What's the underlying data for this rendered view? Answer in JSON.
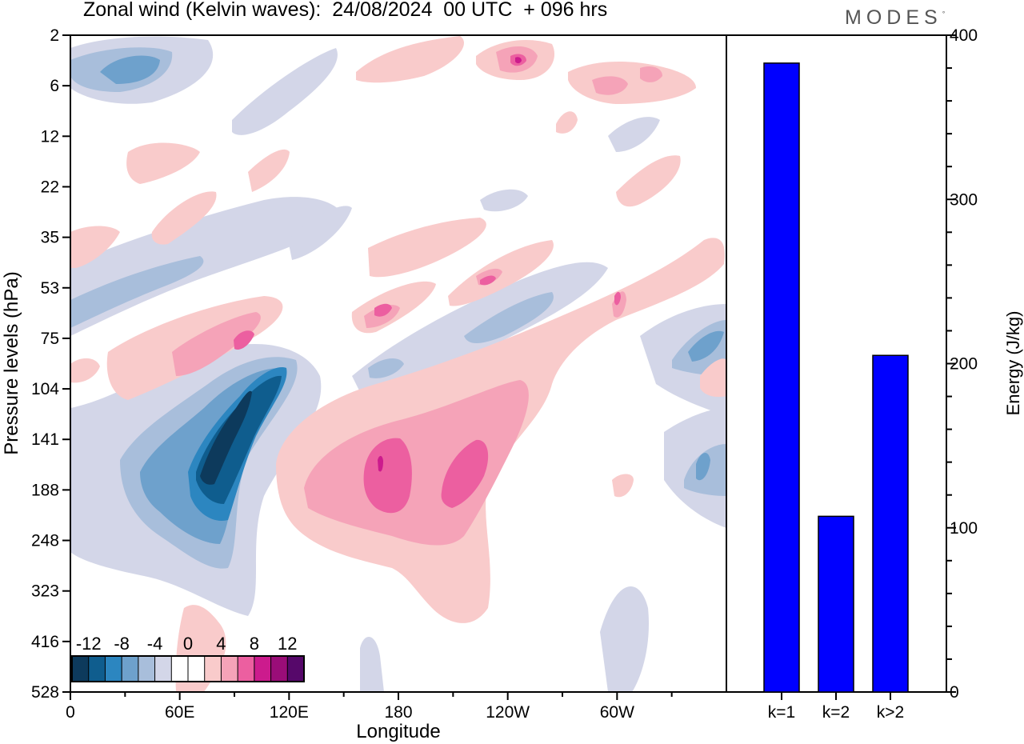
{
  "title": "Zonal wind (Kelvin waves):  24/08/2024  00 UTC  + 096 hrs",
  "logo": "MODES",
  "chart_data": [
    {
      "type": "heatmap",
      "variable": "Zonal wind (Kelvin waves)",
      "xlabel": "Longitude",
      "ylabel": "Pressure levels (hPa)",
      "x_ticks": [
        "0",
        "60E",
        "120E",
        "180",
        "120W",
        "60W"
      ],
      "y_ticks": [
        "2",
        "6",
        "12",
        "22",
        "35",
        "53",
        "75",
        "104",
        "141",
        "188",
        "248",
        "323",
        "416",
        "528"
      ],
      "colorbar_labels": [
        "-12",
        "-8",
        "-4",
        "0",
        "4",
        "8",
        "12"
      ],
      "colorbar_colors": [
        "#0d3a5c",
        "#0f5d8e",
        "#2c86c0",
        "#6ea1cc",
        "#a8bedb",
        "#d3d6e8",
        "#ffffff",
        "#ffffff",
        "#f9cbcb",
        "#f5a3b8",
        "#ec5fa0",
        "#cc1b8d",
        "#9a0d78",
        "#56086a"
      ],
      "features": [
        {
          "sign": "negative",
          "peak": "-12",
          "lon": "60E-110E",
          "levels": "75-248"
        },
        {
          "sign": "positive",
          "peak": "8",
          "lon": "160E-150W",
          "levels": "104-323"
        },
        {
          "sign": "negative",
          "peak": "-8",
          "lon": "0-30E",
          "levels": "2-6"
        },
        {
          "sign": "positive",
          "peak": "8",
          "lon": "150W-100W",
          "levels": "2-6"
        }
      ]
    },
    {
      "type": "bar",
      "categories": [
        "k=1",
        "k=2",
        "k>2"
      ],
      "values": [
        383,
        107,
        205
      ],
      "ylabel": "Energy (J/kg)",
      "ylim": [
        0,
        400
      ],
      "y_ticks": [
        "0",
        "100",
        "200",
        "300",
        "400"
      ],
      "bar_color": "#0000ff"
    }
  ]
}
